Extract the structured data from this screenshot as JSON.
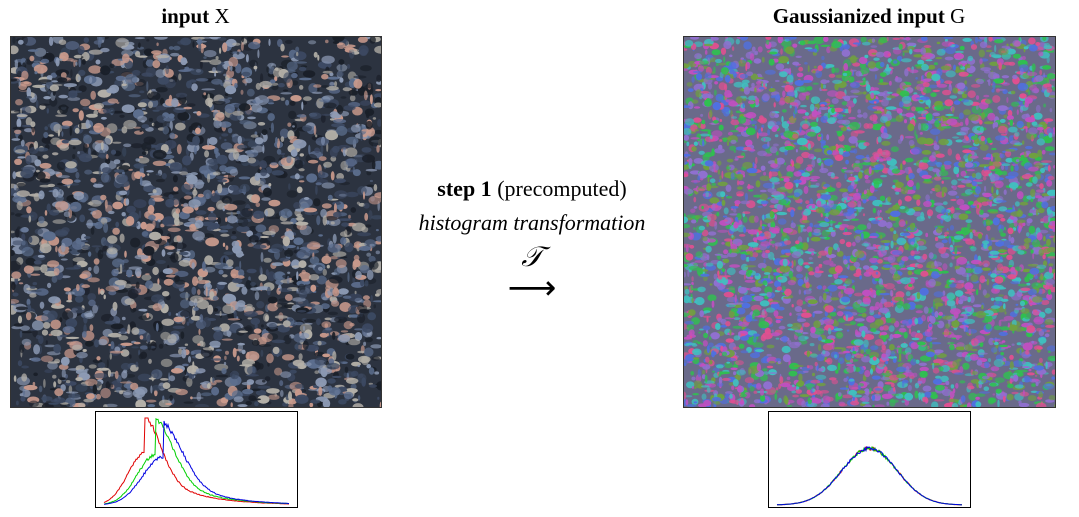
{
  "left_panel": {
    "title_bold": "input",
    "title_var": "X",
    "histogram_series_colors": [
      "#e00000",
      "#00d000",
      "#0000e0"
    ]
  },
  "right_panel": {
    "title_bold": "Gaussianized input",
    "title_var": "G",
    "histogram_series_colors": [
      "#e00000",
      "#00d000",
      "#0000e0"
    ]
  },
  "step": {
    "label_bold": "step 1",
    "label_rest": "(precomputed)",
    "description": "histogram transformation",
    "symbol": "𝒯",
    "arrow": "⟶"
  },
  "colors": {
    "granite_base": "#2c3340",
    "granite_speckles": [
      "#c99a8c",
      "#5c6e8e",
      "#1a1f28",
      "#8c9ab4",
      "#b4b0a8",
      "#3d4a63"
    ],
    "gaussian_speckles": [
      "#e05090",
      "#30c050",
      "#5070e0",
      "#40c0c0",
      "#c050c0",
      "#9070d0",
      "#70a040"
    ]
  }
}
